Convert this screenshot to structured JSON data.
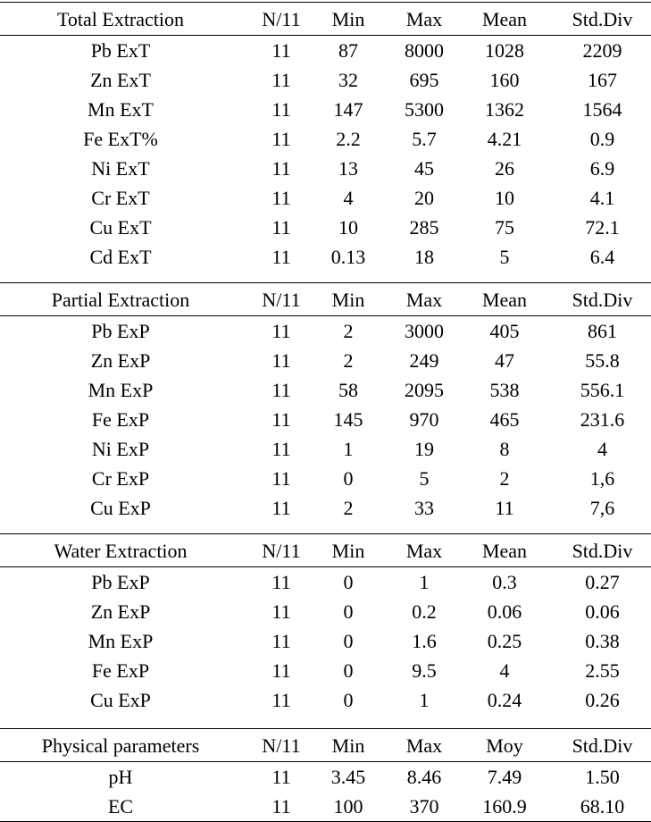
{
  "sections": [
    {
      "header": [
        "Total Extraction",
        "N/11",
        "Min",
        "Max",
        "Mean",
        "Std.Div"
      ],
      "rows": [
        [
          "Pb ExT",
          "11",
          "87",
          "8000",
          "1028",
          "2209"
        ],
        [
          "Zn ExT",
          "11",
          "32",
          "695",
          "160",
          "167"
        ],
        [
          "Mn ExT",
          "11",
          "147",
          "5300",
          "1362",
          "1564"
        ],
        [
          "Fe ExT%",
          "11",
          "2.2",
          "5.7",
          "4.21",
          "0.9"
        ],
        [
          "Ni ExT",
          "11",
          "13",
          "45",
          "26",
          "6.9"
        ],
        [
          "Cr ExT",
          "11",
          "4",
          "20",
          "10",
          "4.1"
        ],
        [
          "Cu ExT",
          "11",
          "10",
          "285",
          "75",
          "72.1"
        ],
        [
          "Cd ExT",
          "11",
          "0.13",
          "18",
          "5",
          "6.4"
        ]
      ]
    },
    {
      "header": [
        "Partial Extraction",
        "N/11",
        "Min",
        "Max",
        "Mean",
        "Std.Div"
      ],
      "rows": [
        [
          "Pb ExP",
          "11",
          "2",
          "3000",
          "405",
          "861"
        ],
        [
          "Zn ExP",
          "11",
          "2",
          "249",
          "47",
          "55.8"
        ],
        [
          "Mn ExP",
          "11",
          "58",
          "2095",
          "538",
          "556.1"
        ],
        [
          "Fe ExP",
          "11",
          "145",
          "970",
          "465",
          "231.6"
        ],
        [
          "Ni ExP",
          "11",
          "1",
          "19",
          "8",
          "4"
        ],
        [
          "Cr ExP",
          "11",
          "0",
          "5",
          "2",
          "1,6"
        ],
        [
          "Cu ExP",
          "11",
          "2",
          "33",
          "11",
          "7,6"
        ]
      ]
    },
    {
      "header": [
        "Water Extraction",
        "N/11",
        "Min",
        "Max",
        "Mean",
        "Std.Div"
      ],
      "rows": [
        [
          "Pb ExP",
          "11",
          "0",
          "1",
          "0.3",
          "0.27"
        ],
        [
          "Zn ExP",
          "11",
          "0",
          "0.2",
          "0.06",
          "0.06"
        ],
        [
          "Mn ExP",
          "11",
          "0",
          "1.6",
          "0.25",
          "0.38"
        ],
        [
          "Fe ExP",
          "11",
          "0",
          "9.5",
          "4",
          "2.55"
        ],
        [
          "Cu ExP",
          "11",
          "0",
          "1",
          "0.24",
          "0.26"
        ]
      ]
    },
    {
      "header": [
        "Physical parameters",
        "N/11",
        "Min",
        "Max",
        "Moy",
        "Std.Div"
      ],
      "rows": [
        [
          "pH",
          "11",
          "3.45",
          "8.46",
          "7.49",
          "1.50"
        ],
        [
          "EC",
          "11",
          "100",
          "370",
          "160.9",
          "68.10"
        ]
      ]
    }
  ]
}
